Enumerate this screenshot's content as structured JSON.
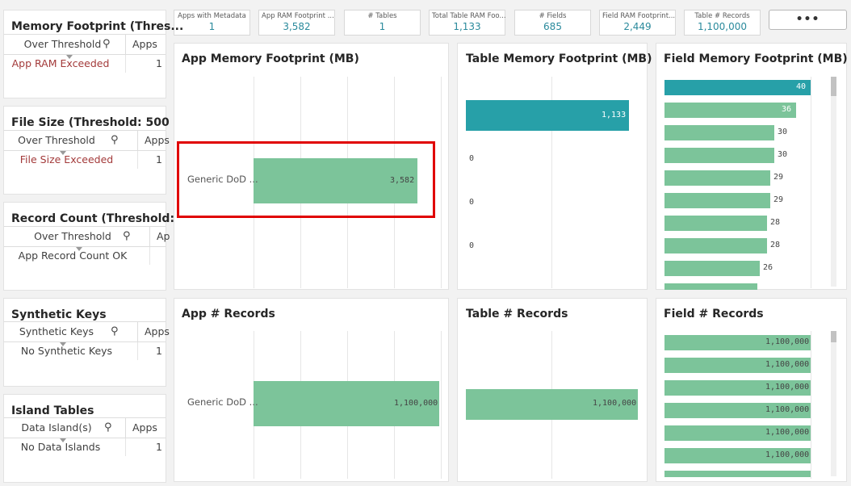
{
  "kpis": [
    {
      "label": "Apps with Metadata",
      "value": "1"
    },
    {
      "label": "App RAM Footprint ...",
      "value": "3,582"
    },
    {
      "label": "# Tables",
      "value": "1"
    },
    {
      "label": "Total Table RAM Foo...",
      "value": "1,133"
    },
    {
      "label": "# Fields",
      "value": "685"
    },
    {
      "label": "Field RAM Footprint...",
      "value": "2,449"
    },
    {
      "label": "Table # Records",
      "value": "1,100,000"
    }
  ],
  "more_button": "•••",
  "filter_panes": [
    {
      "title": "Memory Footprint (Thres...",
      "col1": "Over Threshold",
      "col2": "Apps",
      "row_label": "App RAM Exceeded",
      "row_value": "1",
      "row_color": "red"
    },
    {
      "title": "File Size (Threshold: 500 ...",
      "col1": "Over Threshold",
      "col2": "Apps",
      "row_label": "File Size Exceeded",
      "row_value": "1",
      "row_color": "red"
    },
    {
      "title": "Record Count (Threshold:...",
      "col1": "Over Threshold",
      "col2": "Ap",
      "row_label": "App Record Count OK",
      "row_value": "",
      "row_color": "normal"
    },
    {
      "title": "Synthetic Keys",
      "col1": "Synthetic Keys",
      "col2": "Apps",
      "row_label": "No Synthetic Keys",
      "row_value": "1",
      "row_color": "normal"
    },
    {
      "title": "Island Tables",
      "col1": "Data Island(s)",
      "col2": "Apps",
      "row_label": "No Data Islands",
      "row_value": "1",
      "row_color": "normal"
    }
  ],
  "chart_data": [
    {
      "type": "bar",
      "title": "App Memory Footprint (MB)",
      "categories": [
        "Generic DoD ..."
      ],
      "values": [
        3582
      ],
      "value_labels": [
        "3,582"
      ],
      "orientation": "horizontal",
      "highlighted": true
    },
    {
      "type": "bar",
      "title": "Table Memory Footprint (MB)",
      "categories": [
        "",
        "",
        "",
        ""
      ],
      "values": [
        1133,
        0,
        0,
        0
      ],
      "value_labels": [
        "1,133",
        "0",
        "0",
        "0"
      ],
      "orientation": "horizontal"
    },
    {
      "type": "bar",
      "title": "Field Memory Footprint (MB)",
      "categories": [
        "",
        "",
        "",
        "",
        "",
        "",
        "",
        "",
        ""
      ],
      "values": [
        40,
        36,
        30,
        30,
        29,
        29,
        28,
        28,
        26
      ],
      "value_labels": [
        "40",
        "36",
        "30",
        "30",
        "29",
        "29",
        "28",
        "28",
        "26"
      ],
      "orientation": "horizontal",
      "selected_index": [
        0,
        1
      ]
    },
    {
      "type": "bar",
      "title": "App # Records",
      "categories": [
        "Generic DoD ..."
      ],
      "values": [
        1100000
      ],
      "value_labels": [
        "1,100,000"
      ],
      "orientation": "horizontal"
    },
    {
      "type": "bar",
      "title": "Table # Records",
      "categories": [
        ""
      ],
      "values": [
        1100000
      ],
      "value_labels": [
        "1,100,000"
      ],
      "orientation": "horizontal"
    },
    {
      "type": "bar",
      "title": "Field # Records",
      "categories": [
        "",
        "",
        "",
        "",
        "",
        ""
      ],
      "values": [
        1100000,
        1100000,
        1100000,
        1100000,
        1100000,
        1100000
      ],
      "value_labels": [
        "1,100,000",
        "1,100,000",
        "1,100,000",
        "1,100,000",
        "1,100,000",
        "1,100,000"
      ],
      "orientation": "horizontal"
    }
  ],
  "colors": {
    "bar_green": "#7cc49a",
    "bar_teal": "#27a0a8",
    "kpi_value": "#2a8a9c",
    "exceeded_text": "#a33a3a",
    "highlight": "#e00000"
  }
}
